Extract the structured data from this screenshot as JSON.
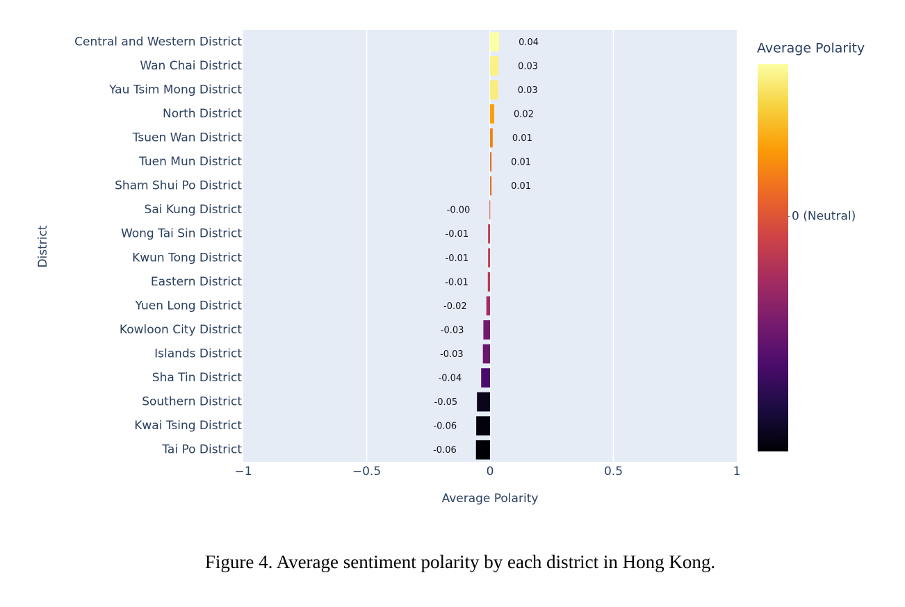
{
  "chart_data": {
    "type": "hbar",
    "categories": [
      "Central and Western District",
      "Wan Chai District",
      "Yau Tsim Mong District",
      "North District",
      "Tsuen Wan District",
      "Tuen Mun District",
      "Sham Shui Po District",
      "Sai Kung District",
      "Wong Tai Sin District",
      "Kwun Tong District",
      "Eastern District",
      "Yuen Long District",
      "Kowloon City District",
      "Islands District",
      "Sha Tin District",
      "Southern District",
      "Kwai Tsing District",
      "Tai Po District"
    ],
    "values": [
      0.037,
      0.034,
      0.033,
      0.017,
      0.011,
      0.006,
      0.006,
      -0.002,
      -0.008,
      -0.008,
      -0.009,
      -0.015,
      -0.027,
      -0.029,
      -0.036,
      -0.053,
      -0.056,
      -0.057
    ],
    "value_labels": [
      "0.04",
      "0.03",
      "0.03",
      "0.02",
      "0.01",
      "0.01",
      "0.01",
      "-0.00",
      "-0.01",
      "-0.01",
      "-0.01",
      "-0.02",
      "-0.03",
      "-0.03",
      "-0.04",
      "-0.05",
      "-0.06",
      "-0.06"
    ],
    "xlabel": "Average Polarity",
    "ylabel": "District",
    "xlim": [
      -1,
      1
    ],
    "xticks": [
      {
        "value": -1,
        "label": "−1"
      },
      {
        "value": -0.5,
        "label": "−0.5"
      },
      0,
      0.5,
      1
    ],
    "grid": true,
    "colorscale": [
      "#000004",
      "#1b0c41",
      "#4a0c6b",
      "#781c6d",
      "#a52c60",
      "#cf4446",
      "#ed6925",
      "#fb9b06",
      "#f7d13d",
      "#fcffa4"
    ],
    "colorbar": {
      "title": "Average Polarity",
      "ticks": [
        {
          "value": 0,
          "label": "0 (Neutral)"
        }
      ]
    },
    "caption": "Figure 4. Average sentiment polarity by each district in Hong Kong."
  }
}
